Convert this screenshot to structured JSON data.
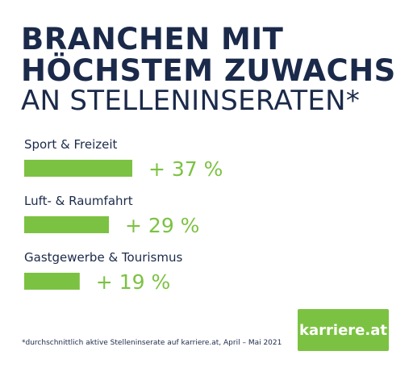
{
  "title": {
    "line1": "BRANCHEN MIT",
    "line2": "HÖCHSTEM ZUWACHS",
    "line3": "AN STELLENINSERATEN*"
  },
  "chart_data": {
    "type": "bar",
    "title": "BRANCHEN MIT HÖCHSTEM ZUWACHS AN STELLENINSERATEN*",
    "categories": [
      "Sport & Freizeit",
      "Luft- & Raumfahrt",
      "Gastgewerbe & Tourismus"
    ],
    "values": [
      37,
      29,
      19
    ],
    "value_labels": [
      "+ 37 %",
      "+ 29 %",
      "+ 19 %"
    ],
    "unit": "%",
    "bar_color": "#7cc242",
    "label_color": "#1b2a4a",
    "orientation": "horizontal",
    "grid": false
  },
  "footnote": "*durchschnittlich aktive Stelleninserate auf karriere.at, April – Mai 2021",
  "logo": {
    "text": "karriere.at",
    "color": "#7cc242"
  }
}
